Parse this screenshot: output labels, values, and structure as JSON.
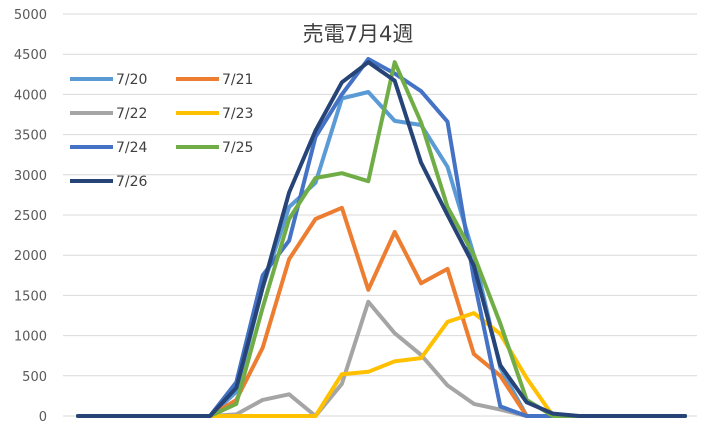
{
  "chart_data": {
    "type": "line",
    "title": "売電7月4週",
    "xlabel": "",
    "ylabel": "",
    "ylim": [
      0,
      5000
    ],
    "yticks": [
      0,
      500,
      1000,
      1500,
      2000,
      2500,
      3000,
      3500,
      4000,
      4500,
      5000
    ],
    "x": [
      0,
      1,
      2,
      3,
      4,
      5,
      6,
      7,
      8,
      9,
      10,
      11,
      12,
      13,
      14,
      15,
      16,
      17,
      18,
      19,
      20,
      21,
      22,
      23
    ],
    "grid": true,
    "legend_position": "top-left",
    "series": [
      {
        "name": "7/20",
        "color": "#5B9BD5",
        "values": [
          0,
          0,
          0,
          0,
          0,
          0,
          300,
          1600,
          2600,
          2900,
          3950,
          4030,
          3670,
          3620,
          3100,
          2000,
          600,
          0,
          0,
          0,
          0,
          0,
          0,
          0
        ]
      },
      {
        "name": "7/21",
        "color": "#ED7D31",
        "values": [
          0,
          0,
          0,
          0,
          0,
          0,
          200,
          850,
          1950,
          2450,
          2590,
          1570,
          2290,
          1650,
          1830,
          770,
          500,
          0,
          0,
          0,
          0,
          0,
          0,
          0
        ]
      },
      {
        "name": "7/22",
        "color": "#A5A5A5",
        "values": [
          0,
          0,
          0,
          0,
          0,
          0,
          20,
          200,
          270,
          0,
          400,
          1420,
          1030,
          760,
          380,
          150,
          80,
          0,
          0,
          0,
          0,
          0,
          0,
          0
        ]
      },
      {
        "name": "7/23",
        "color": "#FFC000",
        "values": [
          0,
          0,
          0,
          0,
          0,
          0,
          0,
          0,
          0,
          0,
          520,
          550,
          680,
          720,
          1170,
          1280,
          1020,
          470,
          0,
          0,
          0,
          0,
          0,
          0
        ]
      },
      {
        "name": "7/24",
        "color": "#4472C4",
        "values": [
          0,
          0,
          0,
          0,
          0,
          0,
          420,
          1750,
          2180,
          3470,
          4000,
          4440,
          4260,
          4040,
          3660,
          1700,
          120,
          0,
          0,
          0,
          0,
          0,
          0,
          0
        ]
      },
      {
        "name": "7/25",
        "color": "#70AD47",
        "values": [
          0,
          0,
          0,
          0,
          0,
          0,
          150,
          1350,
          2450,
          2960,
          3020,
          2920,
          4400,
          3650,
          2600,
          2000,
          1150,
          200,
          0,
          0,
          0,
          0,
          0,
          0
        ]
      },
      {
        "name": "7/26",
        "color": "#264478",
        "values": [
          0,
          0,
          0,
          0,
          0,
          0,
          350,
          1600,
          2780,
          3550,
          4150,
          4400,
          4170,
          3150,
          2500,
          1870,
          630,
          170,
          30,
          0,
          0,
          0,
          0,
          0
        ]
      }
    ]
  }
}
